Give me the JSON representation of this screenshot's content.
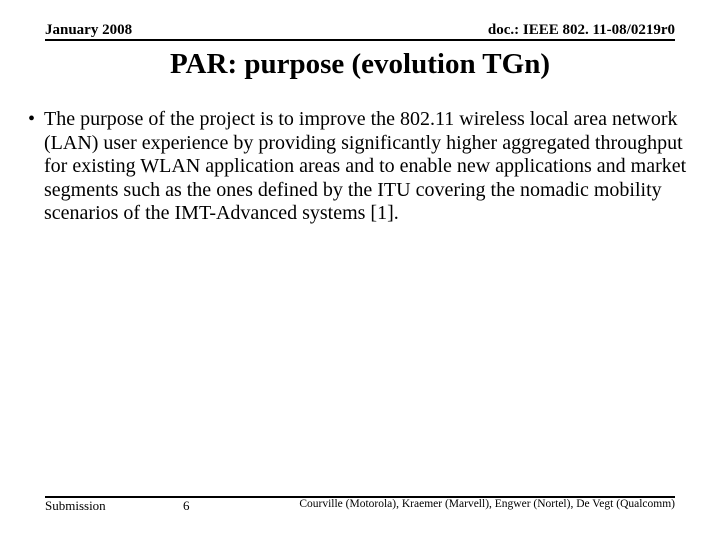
{
  "header": {
    "left": "January 2008",
    "right": "doc.: IEEE 802. 11-08/0219r0"
  },
  "title": "PAR: purpose (evolution TGn)",
  "body": {
    "bullet_marker": "•",
    "text": "The purpose of the project is to improve the 802.11 wireless local area network (LAN) user experience by providing significantly higher aggregated throughput for existing WLAN application areas and to enable new applications and market segments such as the ones defined by the ITU covering the nomadic mobility scenarios of the IMT-Advanced systems [1]."
  },
  "footer": {
    "left": "Submission",
    "page": "6",
    "right": "Courville (Motorola), Kraemer (Marvell), Engwer (Nortel), De Vegt (Qualcomm)"
  },
  "colors": {
    "background": "#ffffff",
    "text": "#000000",
    "rule": "#000000"
  },
  "fonts": {
    "family": "Times New Roman",
    "header_size_pt": 11,
    "title_size_pt": 22,
    "body_size_pt": 15,
    "footer_size_pt": 10
  }
}
